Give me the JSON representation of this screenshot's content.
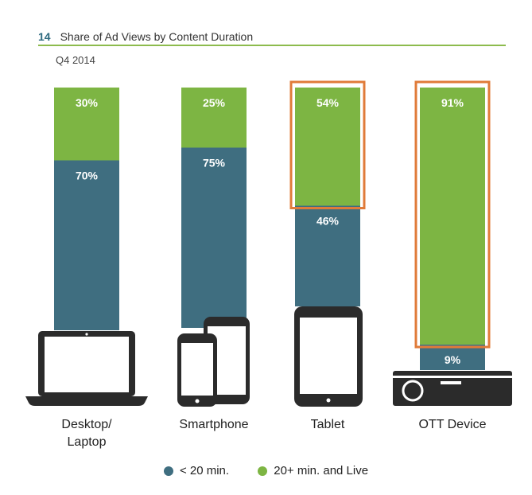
{
  "header": {
    "figure_number": "14",
    "title": "Share of Ad Views by Content Duration",
    "subtitle": "Q4 2014"
  },
  "colors": {
    "short": "#3f6e80",
    "long": "#7db543",
    "highlight": "#e07b39",
    "device": "#2b2b2b"
  },
  "chart_data": {
    "type": "bar",
    "stacked": true,
    "title": "Share of Ad Views by Content Duration",
    "subtitle": "Q4 2014",
    "categories": [
      "Desktop/ Laptop",
      "Smartphone",
      "Tablet",
      "OTT Device"
    ],
    "category_lines": [
      [
        "Desktop/",
        "Laptop"
      ],
      [
        "Smartphone"
      ],
      [
        "Tablet"
      ],
      [
        "OTT Device"
      ]
    ],
    "series": [
      {
        "name": "< 20 min.",
        "values": [
          70,
          75,
          46,
          9
        ]
      },
      {
        "name": "20+ min. and Live",
        "values": [
          30,
          25,
          54,
          91
        ]
      }
    ],
    "value_labels": [
      [
        "70%",
        "75%",
        "46%",
        "9%"
      ],
      [
        "30%",
        "25%",
        "54%",
        "91%"
      ]
    ],
    "highlighted_segments": [
      {
        "category": "Tablet",
        "series": "20+ min. and Live"
      },
      {
        "category": "OTT Device",
        "series": "20+ min. and Live"
      }
    ],
    "device_icons": [
      "laptop-icon",
      "smartphones-icon",
      "tablet-icon",
      "ott-device-icon"
    ],
    "legend_position": "bottom",
    "ylim": [
      0,
      100
    ],
    "grid": false
  },
  "legend": {
    "items": [
      {
        "label": "< 20 min.",
        "color": "#3f6e80"
      },
      {
        "label": "20+ min. and Live",
        "color": "#7db543"
      }
    ]
  }
}
